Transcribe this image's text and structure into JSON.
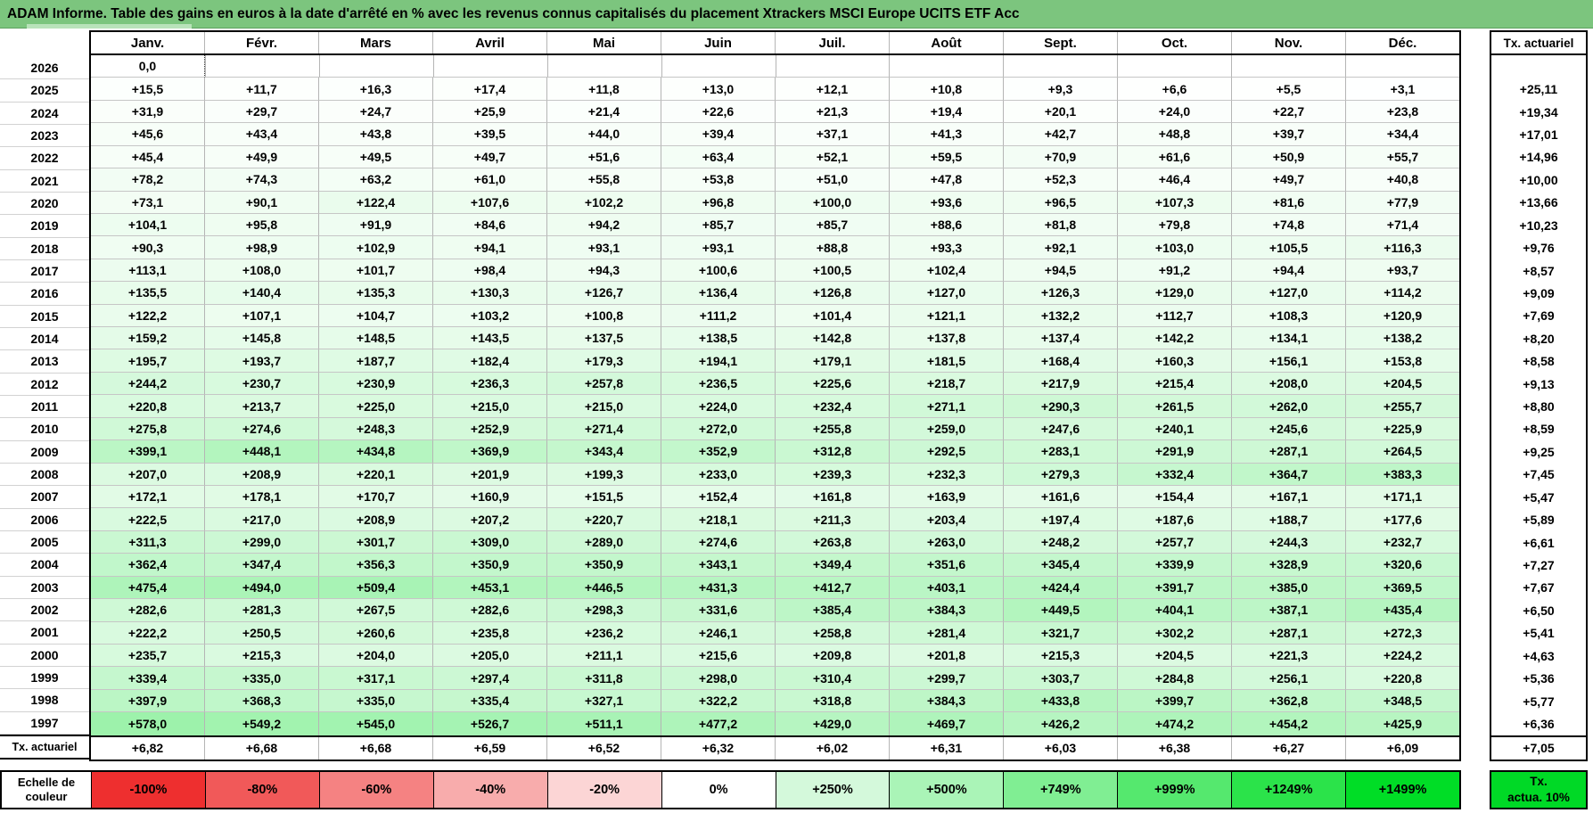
{
  "title": "ADAM Informe. Table des gains en euros à la date d'arrêté en % avec les revenus connus capitalisés du placement Xtrackers MSCI Europe UCITS ETF Acc",
  "colors": {
    "title_bg": "#7cc57e",
    "positive_max": "#00dd26",
    "negative_max": "#ee2f2f",
    "legend_tx_bg": "#00d926"
  },
  "chart_data": {
    "type": "heatmap",
    "title": "ADAM Informe. Table des gains en euros à la date d'arrêté en % avec les revenus connus capitalisés du placement Xtrackers MSCI Europe UCITS ETF Acc",
    "columns": [
      "Janv.",
      "Févr.",
      "Mars",
      "Avril",
      "Mai",
      "Juin",
      "Juil.",
      "Août",
      "Sept.",
      "Oct.",
      "Nov.",
      "Déc."
    ],
    "right_column_header": "Tx. actuariel",
    "bottom_row_label": "Tx. actuariel",
    "rows": [
      {
        "year": "2026",
        "cells": [
          "0,0",
          "",
          "",
          "",
          "",
          "",
          "",
          "",
          "",
          "",
          "",
          ""
        ],
        "tx": ""
      },
      {
        "year": "2025",
        "cells": [
          "+15,5",
          "+11,7",
          "+16,3",
          "+17,4",
          "+11,8",
          "+13,0",
          "+12,1",
          "+10,8",
          "+9,3",
          "+6,6",
          "+5,5",
          "+3,1"
        ],
        "tx": "+25,11"
      },
      {
        "year": "2024",
        "cells": [
          "+31,9",
          "+29,7",
          "+24,7",
          "+25,9",
          "+21,4",
          "+22,6",
          "+21,3",
          "+19,4",
          "+20,1",
          "+24,0",
          "+22,7",
          "+23,8"
        ],
        "tx": "+19,34"
      },
      {
        "year": "2023",
        "cells": [
          "+45,6",
          "+43,4",
          "+43,8",
          "+39,5",
          "+44,0",
          "+39,4",
          "+37,1",
          "+41,3",
          "+42,7",
          "+48,8",
          "+39,7",
          "+34,4"
        ],
        "tx": "+17,01"
      },
      {
        "year": "2022",
        "cells": [
          "+45,4",
          "+49,9",
          "+49,5",
          "+49,7",
          "+51,6",
          "+63,4",
          "+52,1",
          "+59,5",
          "+70,9",
          "+61,6",
          "+50,9",
          "+55,7"
        ],
        "tx": "+14,96"
      },
      {
        "year": "2021",
        "cells": [
          "+78,2",
          "+74,3",
          "+63,2",
          "+61,0",
          "+55,8",
          "+53,8",
          "+51,0",
          "+47,8",
          "+52,3",
          "+46,4",
          "+49,7",
          "+40,8"
        ],
        "tx": "+10,00"
      },
      {
        "year": "2020",
        "cells": [
          "+73,1",
          "+90,1",
          "+122,4",
          "+107,6",
          "+102,2",
          "+96,8",
          "+100,0",
          "+93,6",
          "+96,5",
          "+107,3",
          "+81,6",
          "+77,9"
        ],
        "tx": "+13,66"
      },
      {
        "year": "2019",
        "cells": [
          "+104,1",
          "+95,8",
          "+91,9",
          "+84,6",
          "+94,2",
          "+85,7",
          "+85,7",
          "+88,6",
          "+81,8",
          "+79,8",
          "+74,8",
          "+71,4"
        ],
        "tx": "+10,23"
      },
      {
        "year": "2018",
        "cells": [
          "+90,3",
          "+98,9",
          "+102,9",
          "+94,1",
          "+93,1",
          "+93,1",
          "+88,8",
          "+93,3",
          "+92,1",
          "+103,0",
          "+105,5",
          "+116,3"
        ],
        "tx": "+9,76"
      },
      {
        "year": "2017",
        "cells": [
          "+113,1",
          "+108,0",
          "+101,7",
          "+98,4",
          "+94,3",
          "+100,6",
          "+100,5",
          "+102,4",
          "+94,5",
          "+91,2",
          "+94,4",
          "+93,7"
        ],
        "tx": "+8,57"
      },
      {
        "year": "2016",
        "cells": [
          "+135,5",
          "+140,4",
          "+135,3",
          "+130,3",
          "+126,7",
          "+136,4",
          "+126,8",
          "+127,0",
          "+126,3",
          "+129,0",
          "+127,0",
          "+114,2"
        ],
        "tx": "+9,09"
      },
      {
        "year": "2015",
        "cells": [
          "+122,2",
          "+107,1",
          "+104,7",
          "+103,2",
          "+100,8",
          "+111,2",
          "+101,4",
          "+121,1",
          "+132,2",
          "+112,7",
          "+108,3",
          "+120,9"
        ],
        "tx": "+7,69"
      },
      {
        "year": "2014",
        "cells": [
          "+159,2",
          "+145,8",
          "+148,5",
          "+143,5",
          "+137,5",
          "+138,5",
          "+142,8",
          "+137,8",
          "+137,4",
          "+142,2",
          "+134,1",
          "+138,2"
        ],
        "tx": "+8,20"
      },
      {
        "year": "2013",
        "cells": [
          "+195,7",
          "+193,7",
          "+187,7",
          "+182,4",
          "+179,3",
          "+194,1",
          "+179,1",
          "+181,5",
          "+168,4",
          "+160,3",
          "+156,1",
          "+153,8"
        ],
        "tx": "+8,58"
      },
      {
        "year": "2012",
        "cells": [
          "+244,2",
          "+230,7",
          "+230,9",
          "+236,3",
          "+257,8",
          "+236,5",
          "+225,6",
          "+218,7",
          "+217,9",
          "+215,4",
          "+208,0",
          "+204,5"
        ],
        "tx": "+9,13"
      },
      {
        "year": "2011",
        "cells": [
          "+220,8",
          "+213,7",
          "+225,0",
          "+215,0",
          "+215,0",
          "+224,0",
          "+232,4",
          "+271,1",
          "+290,3",
          "+261,5",
          "+262,0",
          "+255,7"
        ],
        "tx": "+8,80"
      },
      {
        "year": "2010",
        "cells": [
          "+275,8",
          "+274,6",
          "+248,3",
          "+252,9",
          "+271,4",
          "+272,0",
          "+255,8",
          "+259,0",
          "+247,6",
          "+240,1",
          "+245,6",
          "+225,9"
        ],
        "tx": "+8,59"
      },
      {
        "year": "2009",
        "cells": [
          "+399,1",
          "+448,1",
          "+434,8",
          "+369,9",
          "+343,4",
          "+352,9",
          "+312,8",
          "+292,5",
          "+283,1",
          "+291,9",
          "+287,1",
          "+264,5"
        ],
        "tx": "+9,25"
      },
      {
        "year": "2008",
        "cells": [
          "+207,0",
          "+208,9",
          "+220,1",
          "+201,9",
          "+199,3",
          "+233,0",
          "+239,3",
          "+232,3",
          "+279,3",
          "+332,4",
          "+364,7",
          "+383,3"
        ],
        "tx": "+7,45"
      },
      {
        "year": "2007",
        "cells": [
          "+172,1",
          "+178,1",
          "+170,7",
          "+160,9",
          "+151,5",
          "+152,4",
          "+161,8",
          "+163,9",
          "+161,6",
          "+154,4",
          "+167,1",
          "+171,1"
        ],
        "tx": "+5,47"
      },
      {
        "year": "2006",
        "cells": [
          "+222,5",
          "+217,0",
          "+208,9",
          "+207,2",
          "+220,7",
          "+218,1",
          "+211,3",
          "+203,4",
          "+197,4",
          "+187,6",
          "+188,7",
          "+177,6"
        ],
        "tx": "+5,89"
      },
      {
        "year": "2005",
        "cells": [
          "+311,3",
          "+299,0",
          "+301,7",
          "+309,0",
          "+289,0",
          "+274,6",
          "+263,8",
          "+263,0",
          "+248,2",
          "+257,7",
          "+244,3",
          "+232,7"
        ],
        "tx": "+6,61"
      },
      {
        "year": "2004",
        "cells": [
          "+362,4",
          "+347,4",
          "+356,3",
          "+350,9",
          "+350,9",
          "+343,1",
          "+349,4",
          "+351,6",
          "+345,4",
          "+339,9",
          "+328,9",
          "+320,6"
        ],
        "tx": "+7,27"
      },
      {
        "year": "2003",
        "cells": [
          "+475,4",
          "+494,0",
          "+509,4",
          "+453,1",
          "+446,5",
          "+431,3",
          "+412,7",
          "+403,1",
          "+424,4",
          "+391,7",
          "+385,0",
          "+369,5"
        ],
        "tx": "+7,67"
      },
      {
        "year": "2002",
        "cells": [
          "+282,6",
          "+281,3",
          "+267,5",
          "+282,6",
          "+298,3",
          "+331,6",
          "+385,4",
          "+384,3",
          "+449,5",
          "+404,1",
          "+387,1",
          "+435,4"
        ],
        "tx": "+6,50"
      },
      {
        "year": "2001",
        "cells": [
          "+222,2",
          "+250,5",
          "+260,6",
          "+235,8",
          "+236,2",
          "+246,1",
          "+258,8",
          "+281,4",
          "+321,7",
          "+302,2",
          "+287,1",
          "+272,3"
        ],
        "tx": "+5,41"
      },
      {
        "year": "2000",
        "cells": [
          "+235,7",
          "+215,3",
          "+204,0",
          "+205,0",
          "+211,1",
          "+215,6",
          "+209,8",
          "+201,8",
          "+215,3",
          "+204,5",
          "+221,3",
          "+224,2"
        ],
        "tx": "+4,63"
      },
      {
        "year": "1999",
        "cells": [
          "+339,4",
          "+335,0",
          "+317,1",
          "+297,4",
          "+311,8",
          "+298,0",
          "+310,4",
          "+299,7",
          "+303,7",
          "+284,8",
          "+256,1",
          "+220,8"
        ],
        "tx": "+5,36"
      },
      {
        "year": "1998",
        "cells": [
          "+397,9",
          "+368,3",
          "+335,0",
          "+335,4",
          "+327,1",
          "+322,2",
          "+318,8",
          "+384,3",
          "+433,8",
          "+399,7",
          "+362,8",
          "+348,5"
        ],
        "tx": "+5,77"
      },
      {
        "year": "1997",
        "cells": [
          "+578,0",
          "+549,2",
          "+545,0",
          "+526,7",
          "+511,1",
          "+477,2",
          "+429,0",
          "+469,7",
          "+426,2",
          "+474,2",
          "+454,2",
          "+425,9"
        ],
        "tx": "+6,36"
      }
    ],
    "bottom_row": {
      "label": "Tx. actuariel",
      "cells": [
        "+6,82",
        "+6,68",
        "+6,68",
        "+6,59",
        "+6,52",
        "+6,32",
        "+6,02",
        "+6,31",
        "+6,03",
        "+6,38",
        "+6,27",
        "+6,09"
      ],
      "tx": "+7,05"
    },
    "color_scale": {
      "label": [
        "Echelle de",
        "couleur"
      ],
      "stops": [
        "-100%",
        "-80%",
        "-60%",
        "-40%",
        "-20%",
        "0%",
        "+250%",
        "+500%",
        "+749%",
        "+999%",
        "+1249%",
        "+1499%"
      ],
      "tx_box": [
        "Tx.",
        "actua. 10%"
      ],
      "domain": [
        -100,
        1499
      ],
      "negative_color": "#ee2f2f",
      "positive_color": "#00dd26",
      "tx_box_color": "#00d926"
    }
  }
}
